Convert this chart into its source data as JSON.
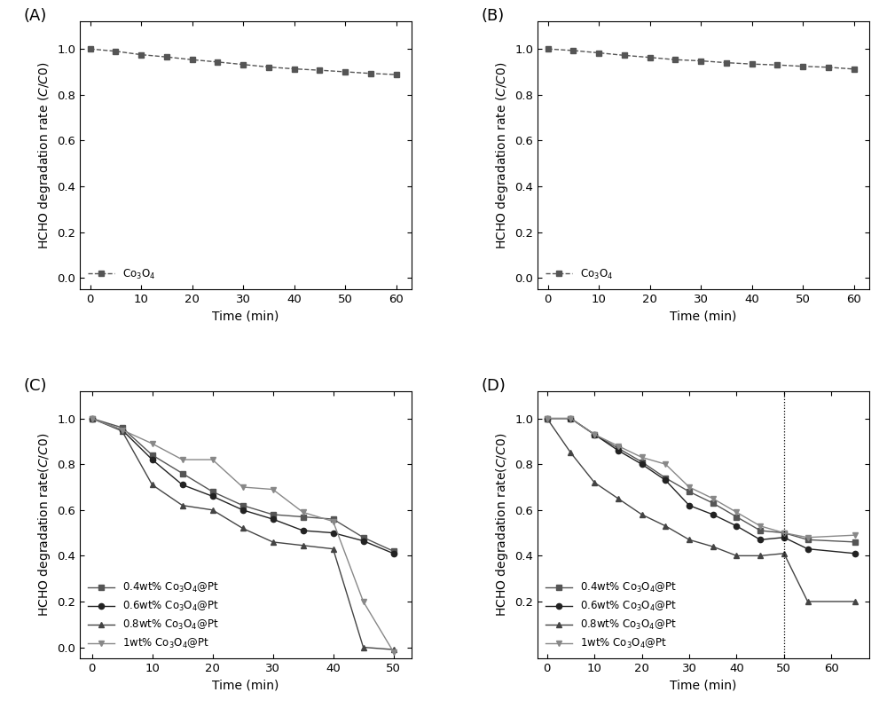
{
  "panel_A": {
    "label": "Co$_3$O$_4$",
    "x": [
      0,
      5,
      10,
      15,
      20,
      25,
      30,
      35,
      40,
      45,
      50,
      55,
      60
    ],
    "y": [
      1.0,
      0.99,
      0.975,
      0.965,
      0.953,
      0.943,
      0.932,
      0.921,
      0.913,
      0.907,
      0.9,
      0.893,
      0.888
    ],
    "ylabel": "HCHO degradation rate ($C$/$C0$)",
    "xlabel": "Time (min)",
    "panel_label": "(A)",
    "ylim": [
      -0.05,
      1.12
    ],
    "xlim": [
      -2,
      63
    ],
    "yticks": [
      0.0,
      0.2,
      0.4,
      0.6,
      0.8,
      1.0
    ],
    "xticks": [
      0,
      10,
      20,
      30,
      40,
      50,
      60
    ]
  },
  "panel_B": {
    "label": "Co$_3$O$_4$",
    "x": [
      0,
      5,
      10,
      15,
      20,
      25,
      30,
      35,
      40,
      45,
      50,
      55,
      60
    ],
    "y": [
      1.0,
      0.993,
      0.983,
      0.972,
      0.963,
      0.953,
      0.948,
      0.94,
      0.934,
      0.93,
      0.924,
      0.92,
      0.912
    ],
    "ylabel": "HCHO degradation rate ($C$/$C0$)",
    "xlabel": "Time (min)",
    "panel_label": "(B)",
    "ylim": [
      -0.05,
      1.12
    ],
    "xlim": [
      -2,
      63
    ],
    "yticks": [
      0.0,
      0.2,
      0.4,
      0.6,
      0.8,
      1.0
    ],
    "xticks": [
      0,
      10,
      20,
      30,
      40,
      50,
      60
    ]
  },
  "panel_C": {
    "series": [
      {
        "label": "0.4wt% Co$_3$O$_4$@Pt",
        "x": [
          0,
          5,
          10,
          15,
          20,
          25,
          30,
          35,
          40,
          45,
          50
        ],
        "y": [
          1.0,
          0.96,
          0.84,
          0.76,
          0.68,
          0.62,
          0.58,
          0.57,
          0.56,
          0.48,
          0.42
        ],
        "marker": "s",
        "color": "#555555"
      },
      {
        "label": "0.6wt% Co$_3$O$_4$@Pt",
        "x": [
          0,
          5,
          10,
          15,
          20,
          25,
          30,
          35,
          40,
          45,
          50
        ],
        "y": [
          1.0,
          0.95,
          0.82,
          0.71,
          0.66,
          0.6,
          0.56,
          0.51,
          0.5,
          0.465,
          0.41
        ],
        "marker": "o",
        "color": "#222222"
      },
      {
        "label": "0.8wt% Co$_3$O$_4$@Pt",
        "x": [
          0,
          5,
          10,
          15,
          20,
          25,
          30,
          35,
          40,
          45,
          50
        ],
        "y": [
          1.0,
          0.945,
          0.71,
          0.62,
          0.6,
          0.52,
          0.46,
          0.445,
          0.43,
          0.0,
          -0.01
        ],
        "marker": "^",
        "color": "#444444"
      },
      {
        "label": "1wt% Co$_3$O$_4$@Pt",
        "x": [
          0,
          5,
          10,
          15,
          20,
          25,
          30,
          35,
          40,
          45,
          50
        ],
        "y": [
          1.0,
          0.95,
          0.89,
          0.82,
          0.82,
          0.7,
          0.69,
          0.59,
          0.55,
          0.2,
          -0.02
        ],
        "marker": "v",
        "color": "#888888"
      }
    ],
    "ylabel": "HCHO degradation rate($C$/$C0$)",
    "xlabel": "Time (min)",
    "panel_label": "(C)",
    "ylim": [
      -0.05,
      1.12
    ],
    "xlim": [
      -2,
      53
    ],
    "yticks": [
      0.0,
      0.2,
      0.4,
      0.6,
      0.8,
      1.0
    ],
    "xticks": [
      0,
      10,
      20,
      30,
      40,
      50
    ]
  },
  "panel_D": {
    "series": [
      {
        "label": "0.4wt% Co$_3$O$_4$@Pt",
        "x": [
          0,
          5,
          10,
          15,
          20,
          25,
          30,
          35,
          40,
          45,
          50,
          55,
          65
        ],
        "y": [
          1.0,
          1.0,
          0.93,
          0.87,
          0.81,
          0.74,
          0.68,
          0.63,
          0.57,
          0.51,
          0.5,
          0.47,
          0.46
        ],
        "marker": "s",
        "color": "#555555"
      },
      {
        "label": "0.6wt% Co$_3$O$_4$@Pt",
        "x": [
          0,
          5,
          10,
          15,
          20,
          25,
          30,
          35,
          40,
          45,
          50,
          55,
          65
        ],
        "y": [
          1.0,
          1.0,
          0.93,
          0.86,
          0.8,
          0.73,
          0.62,
          0.58,
          0.53,
          0.47,
          0.48,
          0.43,
          0.41
        ],
        "marker": "o",
        "color": "#222222"
      },
      {
        "label": "0.8wt% Co$_3$O$_4$@Pt",
        "x": [
          0,
          5,
          10,
          15,
          20,
          25,
          30,
          35,
          40,
          45,
          50,
          55,
          65
        ],
        "y": [
          1.0,
          0.85,
          0.72,
          0.65,
          0.58,
          0.53,
          0.47,
          0.44,
          0.4,
          0.4,
          0.41,
          0.2,
          0.2
        ],
        "marker": "^",
        "color": "#444444"
      },
      {
        "label": "1wt% Co$_3$O$_4$@Pt",
        "x": [
          0,
          5,
          10,
          15,
          20,
          25,
          30,
          35,
          40,
          45,
          50,
          55,
          65
        ],
        "y": [
          1.0,
          1.0,
          0.93,
          0.88,
          0.83,
          0.8,
          0.7,
          0.65,
          0.59,
          0.53,
          0.5,
          0.48,
          0.49
        ],
        "marker": "v",
        "color": "#888888"
      }
    ],
    "vline_x": 50,
    "ylabel": "HCHO degradation rate($C$/$C0$)",
    "xlabel": "Time (min)",
    "panel_label": "(D)",
    "ylim": [
      -0.05,
      1.12
    ],
    "xlim": [
      -2,
      68
    ],
    "yticks": [
      0.2,
      0.4,
      0.6,
      0.8,
      1.0
    ],
    "xticks": [
      0,
      10,
      20,
      30,
      40,
      50,
      60
    ]
  },
  "line_color": "#555555",
  "marker_color": "#444444",
  "legend_fontsize": 8.5,
  "axis_fontsize": 10,
  "tick_fontsize": 9.5,
  "panel_label_fontsize": 13
}
